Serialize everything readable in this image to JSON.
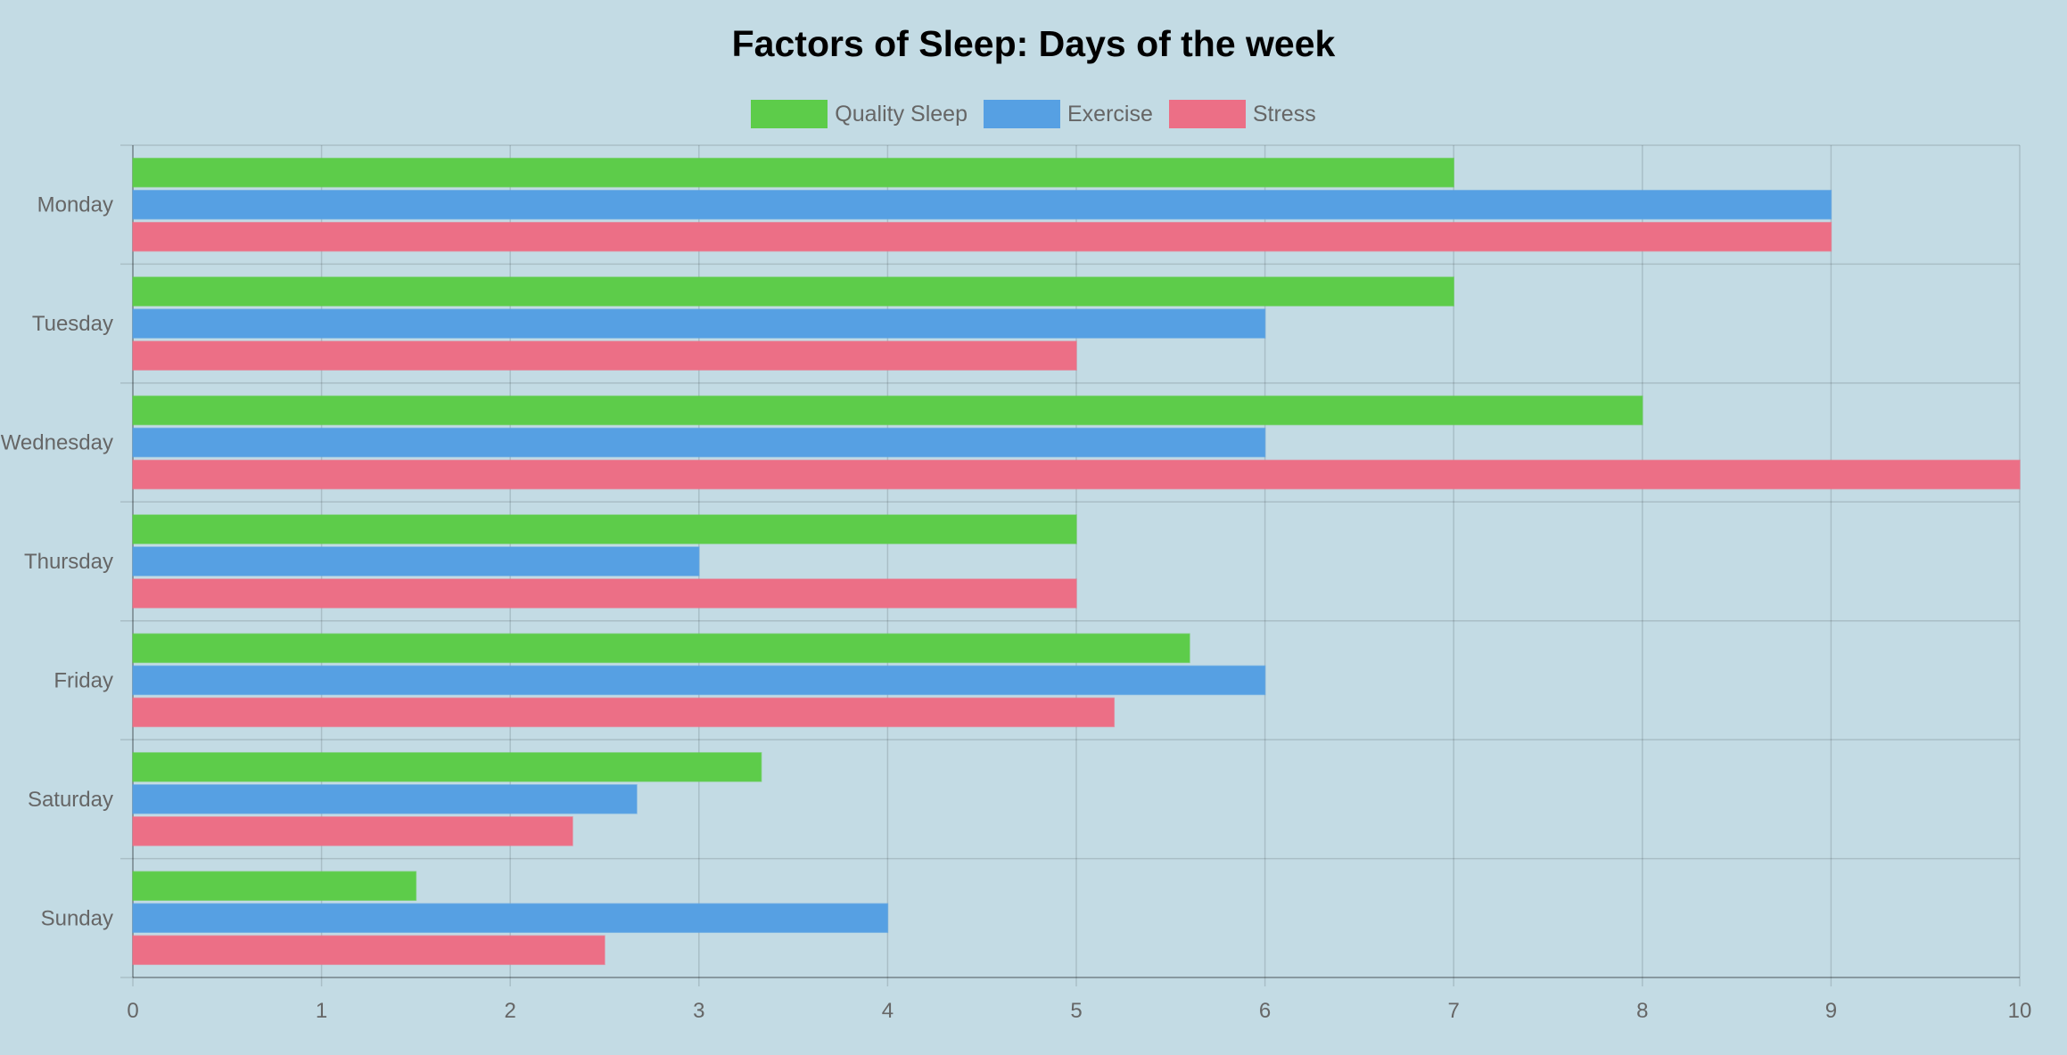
{
  "chart_data": {
    "type": "bar",
    "orientation": "horizontal",
    "title": "Factors of Sleep: Days of the week",
    "categories": [
      "Monday",
      "Tuesday",
      "Wednesday",
      "Thursday",
      "Friday",
      "Saturday",
      "Sunday"
    ],
    "series": [
      {
        "name": "Quality Sleep",
        "color": "#5dcc4a",
        "values": [
          7,
          7,
          8,
          5,
          5.6,
          3.33,
          1.5
        ]
      },
      {
        "name": "Exercise",
        "color": "#56a0e3",
        "values": [
          9,
          6,
          6,
          3,
          6,
          2.67,
          4
        ]
      },
      {
        "name": "Stress",
        "color": "#ec6f86",
        "values": [
          9,
          5,
          10,
          5,
          5.2,
          2.33,
          2.5
        ]
      }
    ],
    "xlim": [
      0,
      10
    ],
    "xticks": [
      0,
      1,
      2,
      3,
      4,
      5,
      6,
      7,
      8,
      9,
      10
    ],
    "xlabel": "",
    "ylabel": "",
    "grid": true,
    "legend_position": "top"
  }
}
